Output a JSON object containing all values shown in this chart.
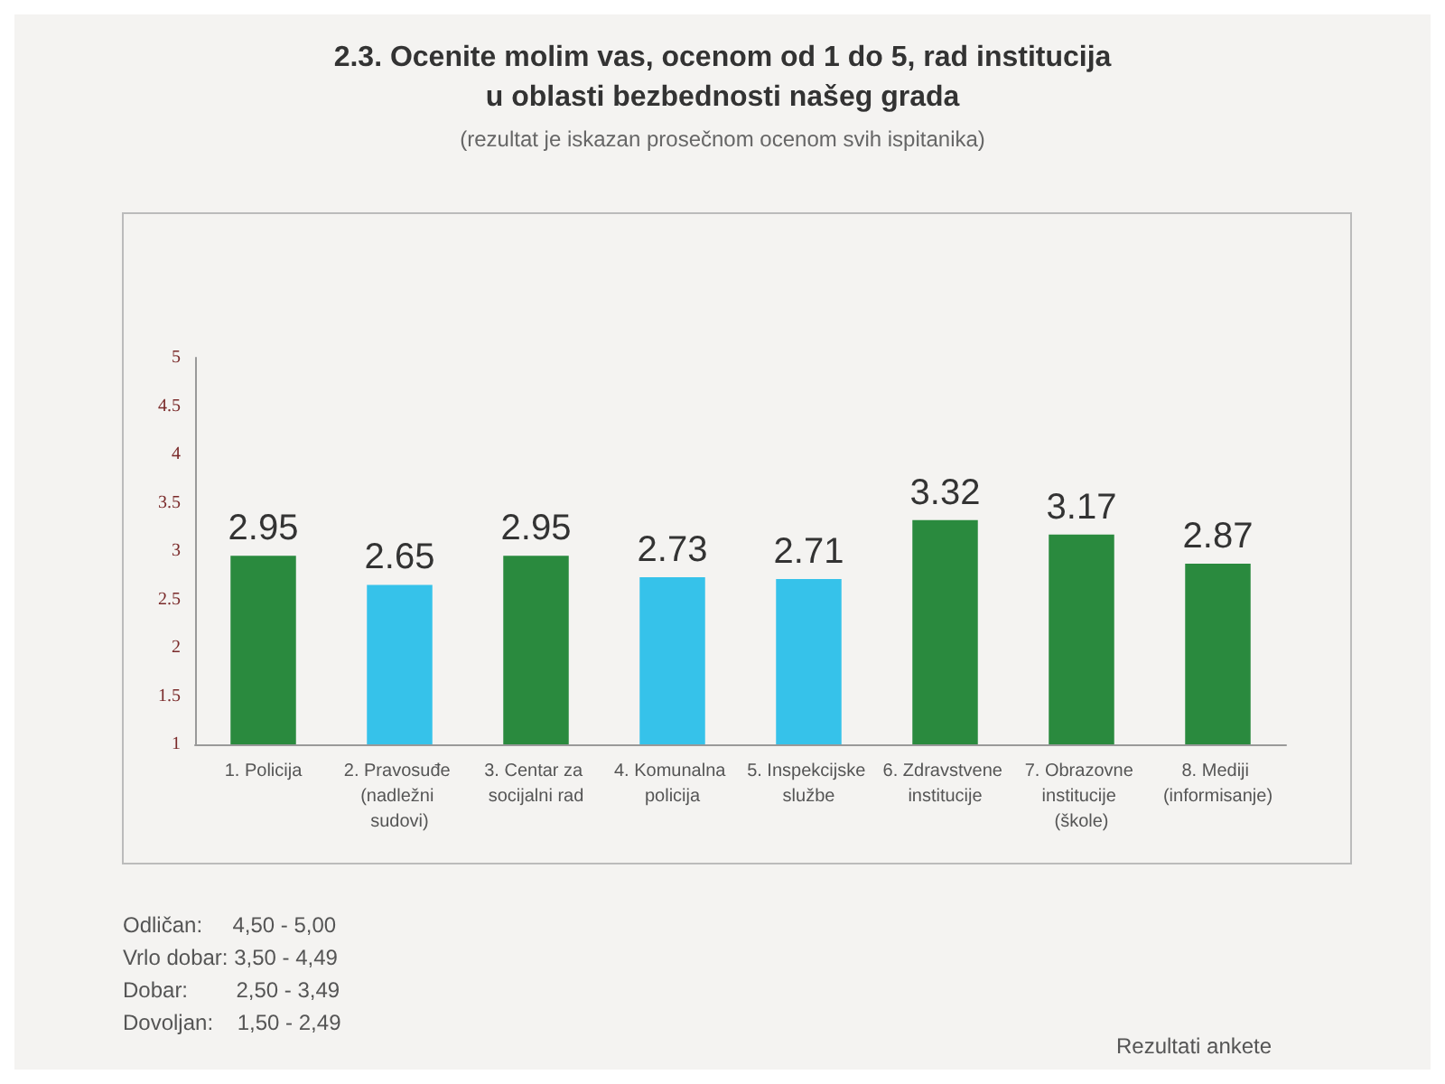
{
  "chart_data": {
    "type": "bar",
    "title": "2.3. Ocenite molim vas, ocenom od 1 do 5, rad institucija\nu oblasti bezbednosti našeg grada",
    "subtitle": "(rezultat je iskazan prosečnom ocenom svih ispitanika)",
    "categories": [
      "1. Policija",
      "2. Pravosuđe (nadležni sudovi)",
      "3. Centar za socijalni rad",
      "4. Komunalna policija",
      "5. Inspekcijske službe",
      "6. Zdravstvene institucije",
      "7. Obrazovne institucije (škole)",
      "8. Mediji (informisanje)"
    ],
    "values": [
      2.95,
      2.65,
      2.95,
      2.73,
      2.71,
      3.32,
      3.17,
      2.87
    ],
    "colors": [
      "#2a8a3e",
      "#36c2ea",
      "#2a8a3e",
      "#36c2ea",
      "#36c2ea",
      "#2a8a3e",
      "#2a8a3e",
      "#2a8a3e"
    ],
    "ylim": [
      1,
      5
    ],
    "yticks": [
      1,
      1.5,
      2,
      2.5,
      3,
      3.5,
      4,
      4.5,
      5
    ],
    "data_labels": true,
    "annotations": [
      "Odličan:     4,50 - 5,00",
      "Vrlo dobar: 3,50 - 4,49",
      "Dobar:        2,50 - 3,49",
      "Dovoljan:    1,50 - 2,49",
      "Rezultati ankete"
    ]
  }
}
